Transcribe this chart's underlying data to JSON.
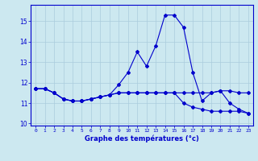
{
  "xlabel": "Graphe des températures (°c)",
  "background_color": "#cce8f0",
  "line_color": "#0000cc",
  "grid_color": "#aaccdd",
  "x_ticks": [
    0,
    1,
    2,
    3,
    4,
    5,
    6,
    7,
    8,
    9,
    10,
    11,
    12,
    13,
    14,
    15,
    16,
    17,
    18,
    19,
    20,
    21,
    22,
    23
  ],
  "ylim": [
    9.9,
    15.8
  ],
  "y_ticks": [
    10,
    11,
    12,
    13,
    14,
    15
  ],
  "series1": [
    11.7,
    11.7,
    11.5,
    11.2,
    11.1,
    11.1,
    11.2,
    11.3,
    11.4,
    11.9,
    12.5,
    13.5,
    12.8,
    13.8,
    15.3,
    15.3,
    14.7,
    12.5,
    11.1,
    11.5,
    11.6,
    11.0,
    10.7,
    10.5
  ],
  "series2": [
    11.7,
    11.7,
    11.5,
    11.2,
    11.1,
    11.1,
    11.2,
    11.3,
    11.4,
    11.5,
    11.5,
    11.5,
    11.5,
    11.5,
    11.5,
    11.5,
    11.5,
    11.5,
    11.5,
    11.5,
    11.6,
    11.6,
    11.5,
    11.5
  ],
  "series3": [
    11.7,
    11.7,
    11.5,
    11.2,
    11.1,
    11.1,
    11.2,
    11.3,
    11.4,
    11.5,
    11.5,
    11.5,
    11.5,
    11.5,
    11.5,
    11.5,
    11.0,
    10.8,
    10.7,
    10.6,
    10.6,
    10.6,
    10.6,
    10.5
  ]
}
